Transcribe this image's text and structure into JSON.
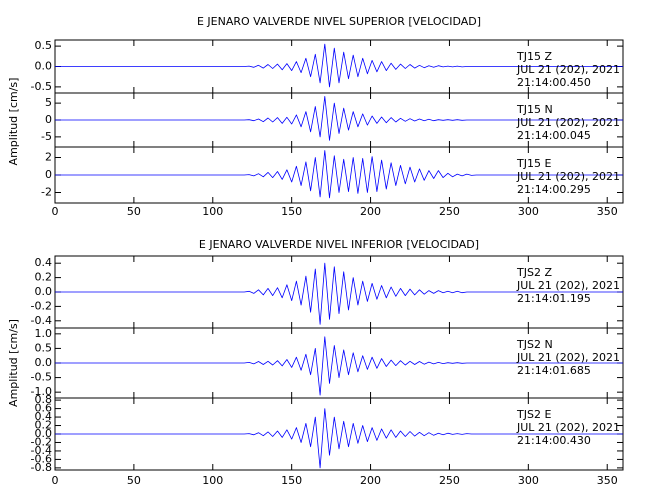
{
  "chart_data": [
    {
      "type": "line",
      "title": "E JENARO VALVERDE NIVEL SUPERIOR [VELOCIDAD]",
      "ylabel": "Amplitud [cm/s]",
      "xlim": [
        0,
        360
      ],
      "xticks": [
        0,
        50,
        100,
        150,
        200,
        250,
        300,
        350
      ],
      "x": [
        0,
        120,
        123,
        126,
        129,
        132,
        135,
        138,
        141,
        144,
        147,
        150,
        153,
        156,
        159,
        162,
        165,
        168,
        171,
        174,
        177,
        180,
        183,
        186,
        189,
        192,
        195,
        198,
        201,
        204,
        207,
        210,
        213,
        216,
        219,
        222,
        225,
        228,
        231,
        234,
        237,
        240,
        243,
        246,
        249,
        252,
        255,
        258,
        261,
        264,
        267,
        270,
        360
      ],
      "panels": [
        {
          "annotations": [
            "TJ15   Z",
            "JUL 21 (202), 2021",
            "21:14:00.450"
          ],
          "color": "#0000ff",
          "ylim": [
            -0.65,
            0.65
          ],
          "yticks": [
            {
              "value": 0.5,
              "label": "0.5"
            },
            {
              "value": 0,
              "label": "0.0"
            },
            {
              "value": -0.5,
              "label": "-0.5"
            }
          ],
          "values": [
            0,
            0,
            0.01,
            -0.02,
            0.03,
            -0.04,
            0.05,
            -0.05,
            0.06,
            -0.08,
            0.07,
            -0.1,
            0.12,
            -0.15,
            0.2,
            -0.25,
            0.3,
            -0.4,
            0.55,
            -0.5,
            0.45,
            -0.4,
            0.35,
            -0.3,
            0.28,
            -0.25,
            0.2,
            -0.18,
            0.15,
            -0.13,
            0.12,
            -0.1,
            0.08,
            -0.07,
            0.06,
            -0.05,
            0.05,
            -0.04,
            0.03,
            -0.03,
            0.02,
            -0.02,
            0.02,
            -0.01,
            0.01,
            -0.01,
            0.01,
            -0.01,
            0,
            0,
            0,
            0,
            0
          ]
        },
        {
          "annotations": [
            "TJ15   N",
            "JUL 21 (202), 2021",
            "21:14:00.045"
          ],
          "color": "#0000ff",
          "ylim": [
            -8,
            8
          ],
          "yticks": [
            5,
            0,
            -5
          ],
          "values": [
            0,
            0,
            0.1,
            -0.2,
            0.3,
            -0.5,
            0.6,
            -0.6,
            0.7,
            -1,
            0.8,
            -1.2,
            1.5,
            -2,
            2.5,
            -3.5,
            4,
            -5,
            7,
            -6,
            5,
            -4,
            3.5,
            -3,
            2.5,
            -2,
            1.8,
            -1.5,
            1.2,
            -1,
            0.9,
            -0.8,
            0.7,
            -0.6,
            0.5,
            -0.4,
            0.4,
            -0.3,
            0.3,
            -0.2,
            0.2,
            -0.2,
            0.1,
            -0.1,
            0.1,
            -0.1,
            0.1,
            -0.1,
            0,
            0,
            0,
            0,
            0
          ]
        },
        {
          "annotations": [
            "TJ15   E",
            "JUL 21 (202), 2021",
            "21:14:00.295"
          ],
          "color": "#0000ff",
          "ylim": [
            -3.2,
            3.2
          ],
          "yticks": [
            2,
            0,
            -2
          ],
          "values": [
            0,
            0,
            0.05,
            -0.1,
            0.15,
            -0.2,
            0.3,
            -0.3,
            0.4,
            -0.5,
            0.6,
            -0.8,
            1,
            -1.2,
            1.5,
            -1.8,
            2,
            -2.5,
            2.8,
            -2.6,
            2.2,
            -2,
            1.8,
            -1.9,
            2,
            -2.1,
            1.9,
            -2,
            2.1,
            -1.9,
            1.7,
            -1.6,
            1.4,
            -1.2,
            1.1,
            -1,
            0.9,
            -0.8,
            0.7,
            -0.6,
            0.5,
            -0.4,
            0.5,
            -0.3,
            0.2,
            -0.2,
            0.1,
            -0.1,
            0.1,
            -0.05,
            0,
            0,
            0
          ]
        }
      ]
    },
    {
      "type": "line",
      "title": "E JENARO VALVERDE NIVEL INFERIOR [VELOCIDAD]",
      "ylabel": "Amplitud  [cm/s]",
      "xlim": [
        0,
        360
      ],
      "xticks": [
        0,
        50,
        100,
        150,
        200,
        250,
        300,
        350
      ],
      "x": [
        0,
        120,
        123,
        126,
        129,
        132,
        135,
        138,
        141,
        144,
        147,
        150,
        153,
        156,
        159,
        162,
        165,
        168,
        171,
        174,
        177,
        180,
        183,
        186,
        189,
        192,
        195,
        198,
        201,
        204,
        207,
        210,
        213,
        216,
        219,
        222,
        225,
        228,
        231,
        234,
        237,
        240,
        243,
        246,
        249,
        252,
        255,
        258,
        261,
        264,
        267,
        270,
        360
      ],
      "panels": [
        {
          "annotations": [
            "TJS2   Z",
            "JUL 21 (202), 2021",
            "21:14:01.195"
          ],
          "color": "#0000ff",
          "ylim": [
            -0.5,
            0.5
          ],
          "yticks": [
            {
              "value": 0.4,
              "label": "0.4"
            },
            {
              "value": 0.2,
              "label": "0.2"
            },
            {
              "value": 0,
              "label": "0.0"
            },
            {
              "value": -0.2,
              "label": "-0.2"
            },
            {
              "value": -0.4,
              "label": "-0.4"
            }
          ],
          "values": [
            0,
            0,
            0.01,
            -0.02,
            0.03,
            -0.04,
            0.05,
            -0.05,
            0.06,
            -0.08,
            0.1,
            -0.12,
            0.15,
            -0.18,
            0.22,
            -0.28,
            0.32,
            -0.45,
            0.4,
            -0.38,
            0.35,
            -0.3,
            0.28,
            -0.25,
            0.2,
            -0.18,
            0.15,
            -0.13,
            0.12,
            -0.1,
            0.09,
            -0.08,
            0.07,
            -0.06,
            0.05,
            -0.05,
            0.04,
            -0.04,
            0.03,
            -0.03,
            0.02,
            -0.02,
            0.02,
            -0.01,
            0.01,
            -0.01,
            0.01,
            -0.01,
            0,
            0,
            0,
            0,
            0
          ]
        },
        {
          "annotations": [
            "TJS2   N",
            "JUL 21 (202), 2021",
            "21:14:01.685"
          ],
          "color": "#0000ff",
          "ylim": [
            -1.2,
            1.2
          ],
          "yticks": [
            {
              "value": 1,
              "label": "1.0"
            },
            {
              "value": 0.5,
              "label": "0.5"
            },
            {
              "value": 0,
              "label": "0.0"
            },
            {
              "value": -0.5,
              "label": "-0.5"
            },
            {
              "value": -1,
              "label": "-1.0"
            }
          ],
          "values": [
            0,
            0,
            0.02,
            -0.03,
            0.05,
            -0.05,
            0.06,
            -0.07,
            0.08,
            -0.1,
            0.12,
            -0.15,
            0.2,
            -0.25,
            0.3,
            -0.4,
            0.5,
            -1.1,
            0.9,
            -0.7,
            0.6,
            -0.5,
            0.45,
            -0.4,
            0.35,
            -0.3,
            0.25,
            -0.22,
            0.2,
            -0.18,
            0.15,
            -0.12,
            0.1,
            -0.09,
            0.08,
            -0.07,
            0.06,
            -0.05,
            0.05,
            -0.04,
            0.03,
            -0.03,
            0.02,
            -0.02,
            0.01,
            -0.01,
            0.01,
            -0.01,
            0,
            0,
            0,
            0,
            0
          ]
        },
        {
          "annotations": [
            "TJS2   E",
            "JUL 21 (202), 2021",
            "21:14:00.430"
          ],
          "color": "#0000ff",
          "ylim": [
            -0.85,
            0.85
          ],
          "yticks": [
            {
              "value": 0.8,
              "label": "0.8"
            },
            {
              "value": 0.6,
              "label": "0.6"
            },
            {
              "value": 0.4,
              "label": "0.4"
            },
            {
              "value": 0.2,
              "label": "0.2"
            },
            {
              "value": 0,
              "label": "0.0"
            },
            {
              "value": -0.2,
              "label": "-0.2"
            },
            {
              "value": -0.4,
              "label": "-0.4"
            },
            {
              "value": -0.6,
              "label": "-0.6"
            },
            {
              "value": -0.8,
              "label": "-0.8"
            }
          ],
          "values": [
            0,
            0,
            0.01,
            -0.02,
            0.03,
            -0.04,
            0.05,
            -0.06,
            0.07,
            -0.08,
            0.1,
            -0.12,
            0.15,
            -0.2,
            0.25,
            -0.3,
            0.4,
            -0.8,
            0.6,
            -0.5,
            0.4,
            -0.35,
            0.3,
            -0.3,
            0.25,
            -0.22,
            0.2,
            -0.18,
            0.15,
            -0.15,
            0.12,
            -0.1,
            0.1,
            -0.08,
            0.07,
            -0.06,
            0.06,
            -0.05,
            0.04,
            -0.04,
            0.03,
            -0.03,
            0.02,
            -0.02,
            0.02,
            -0.01,
            0.01,
            -0.01,
            0.01,
            0,
            0,
            0,
            0
          ]
        }
      ]
    }
  ]
}
